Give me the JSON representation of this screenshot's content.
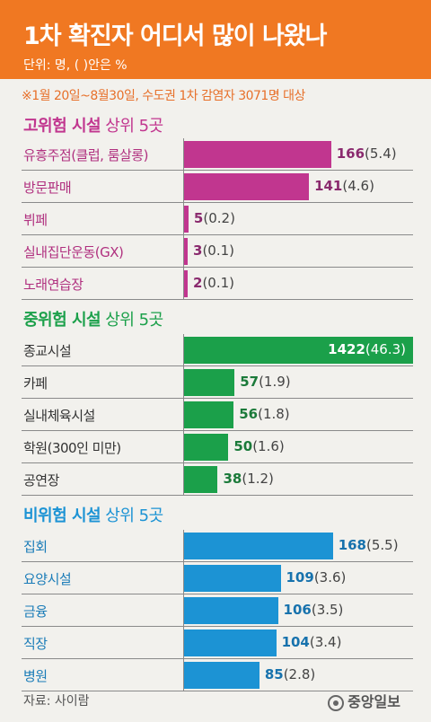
{
  "header": {
    "title": "1차 확진자 어디서 많이 나왔나",
    "unit": "단위: 명, ( )안은 %"
  },
  "note": "※1월 20일~8월30일, 수도권 1차 감염자 3071명 대상",
  "footer": {
    "source": "자료: 사이람",
    "logo": "중앙일보"
  },
  "colors": {
    "header_bg": "#f07822",
    "high": "#c1368f",
    "mid": "#1ba04a",
    "low": "#1c93d4"
  },
  "chart_data": [
    {
      "type": "bar",
      "title": "고위험 시설",
      "subtitle": "상위 5곳",
      "categories": [
        "유흥주점(클럽, 룸살롱)",
        "방문판매",
        "뷔페",
        "실내집단운동(GX)",
        "노래연습장"
      ],
      "values": [
        166,
        141,
        5,
        3,
        2
      ],
      "percents": [
        "(5.4)",
        "(4.6)",
        "(0.2)",
        "(0.1)",
        "(0.1)"
      ],
      "color": "#c1368f"
    },
    {
      "type": "bar",
      "title": "중위험 시설",
      "subtitle": "상위 5곳",
      "categories": [
        "종교시설",
        "카페",
        "실내체육시설",
        "학원(300인 미만)",
        "공연장"
      ],
      "values": [
        1422,
        57,
        56,
        50,
        38
      ],
      "percents": [
        "(46.3)",
        "(1.9)",
        "(1.8)",
        "(1.6)",
        "(1.2)"
      ],
      "color": "#1ba04a"
    },
    {
      "type": "bar",
      "title": "비위험 시설",
      "subtitle": "상위 5곳",
      "categories": [
        "집회",
        "요양시설",
        "금융",
        "직장",
        "병원"
      ],
      "values": [
        168,
        109,
        106,
        104,
        85
      ],
      "percents": [
        "(5.5)",
        "(3.6)",
        "(3.5)",
        "(3.4)",
        "(2.8)"
      ],
      "color": "#1c93d4"
    }
  ]
}
